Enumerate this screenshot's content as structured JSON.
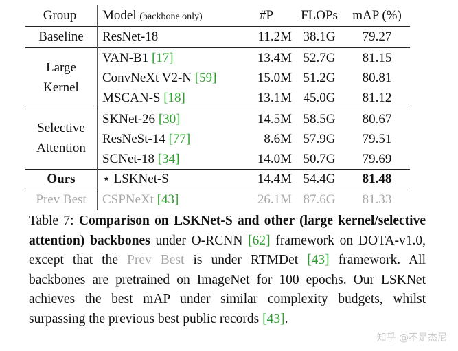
{
  "table": {
    "header": {
      "group": "Group",
      "model": "Model",
      "model_note": "(backbone only)",
      "params": "#P",
      "flops": "FLOPs",
      "map": "mAP (%)"
    },
    "groups": {
      "baseline": "Baseline",
      "large_kernel_line1": "Large",
      "large_kernel_line2": "Kernel",
      "selective_line1": "Selective",
      "selective_line2": "Attention",
      "ours": "Ours",
      "prev_best": "Prev Best"
    },
    "rows": [
      {
        "model": "ResNet-18",
        "cite": "",
        "params": "11.2M",
        "flops": "38.1G",
        "map": "79.27"
      },
      {
        "model": "VAN-B1 ",
        "cite": "[17]",
        "params": "13.4M",
        "flops": "52.7G",
        "map": "81.15"
      },
      {
        "model": "ConvNeXt V2-N ",
        "cite": "[59]",
        "params": "15.0M",
        "flops": "51.2G",
        "map": "80.81"
      },
      {
        "model": "MSCAN-S ",
        "cite": "[18]",
        "params": "13.1M",
        "flops": "45.0G",
        "map": "81.12"
      },
      {
        "model": "SKNet-26 ",
        "cite": "[30]",
        "params": "14.5M",
        "flops": "58.5G",
        "map": "80.67"
      },
      {
        "model": "ResNeSt-14 ",
        "cite": "[77]",
        "params": "8.6M",
        "flops": "57.9G",
        "map": "79.51"
      },
      {
        "model": "SCNet-18 ",
        "cite": "[34]",
        "params": "14.0M",
        "flops": "50.7G",
        "map": "79.69"
      },
      {
        "model": "⋆ LSKNet-S",
        "cite": "",
        "params": "14.4M",
        "flops": "54.4G",
        "map": "81.48"
      },
      {
        "model": "CSPNeXt ",
        "cite": "[43]",
        "params": "26.1M",
        "flops": "87.6G",
        "map": "81.33"
      }
    ]
  },
  "caption": {
    "label": "Table 7:",
    "bold": "Comparison on LSKNet-S and other (large kernel/selective attention) backbones",
    "t1": " under O-RCNN ",
    "c1": "[62]",
    "t2": " framework on DOTA-v1.0, except that the ",
    "prev": "Prev Best",
    "t3": " is under RTMDet ",
    "c2": "[43]",
    "t4": " framework. All backbones are pretrained on ImageNet for 100 epochs. Our LSKNet achieves the best mAP under similar complexity budgets, whilst surpassing the previous best public records ",
    "c3": "[43]",
    "t5": "."
  },
  "watermark": "知乎 @不是杰尼"
}
